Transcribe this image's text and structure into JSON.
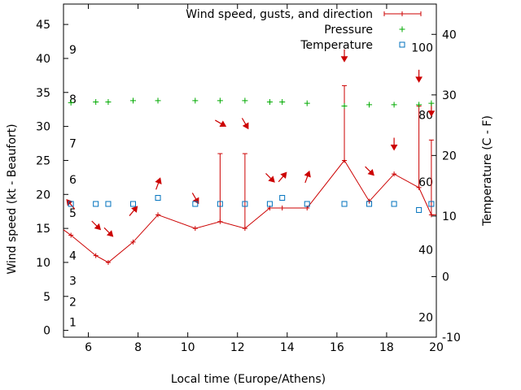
{
  "chart_data": {
    "type": "line",
    "xlabel": "Local time (Europe/Athens)",
    "ylabel": "Wind speed (kt - Beaufort)",
    "y2label": "Temperature (C - F)",
    "xlim": [
      5,
      20
    ],
    "ylim": [
      -1,
      48
    ],
    "y2lim": [
      -10,
      45
    ],
    "x_ticks": [
      6,
      8,
      10,
      12,
      14,
      16,
      18,
      20
    ],
    "y_ticks": [
      0,
      5,
      10,
      15,
      20,
      25,
      30,
      35,
      40,
      45
    ],
    "y2_ticks": [
      -10,
      0,
      10,
      20,
      30,
      40
    ],
    "beaufort_labels": [
      {
        "label": "1",
        "y": 1.2
      },
      {
        "label": "2",
        "y": 4.2
      },
      {
        "label": "3",
        "y": 7.3
      },
      {
        "label": "4",
        "y": 11.0
      },
      {
        "label": "5",
        "y": 17.3
      },
      {
        "label": "6",
        "y": 22.2
      },
      {
        "label": "7",
        "y": 27.5
      },
      {
        "label": "8",
        "y": 34.0
      },
      {
        "label": "9",
        "y": 41.3
      }
    ],
    "fahrenheit_labels": [
      {
        "label": "20",
        "c": -6.7
      },
      {
        "label": "40",
        "c": 4.4
      },
      {
        "label": "60",
        "c": 15.6
      },
      {
        "label": "80",
        "c": 26.7
      },
      {
        "label": "100",
        "c": 37.8
      }
    ],
    "legend": {
      "position": "top-right",
      "entries": [
        {
          "label": "Wind speed, gusts, and direction",
          "color": "#cc0000"
        },
        {
          "label": "Pressure",
          "color": "#00aa00"
        },
        {
          "label": "Temperature",
          "color": "#0072bd"
        }
      ]
    },
    "series": [
      {
        "name": "Wind speed, gusts, and direction",
        "color": "#cc0000",
        "x": [
          5.3,
          6.3,
          6.8,
          7.8,
          8.8,
          10.3,
          11.3,
          12.3,
          13.3,
          13.8,
          14.8,
          16.3,
          17.3,
          18.3,
          19.3,
          19.8
        ],
        "y": [
          14,
          11,
          10,
          13,
          17,
          15,
          16,
          15,
          18,
          18,
          18,
          25,
          19,
          23,
          21,
          17
        ],
        "gust": [
          null,
          null,
          null,
          null,
          null,
          null,
          26,
          26,
          null,
          null,
          null,
          36,
          null,
          null,
          33,
          28
        ],
        "direction_deg": [
          140,
          315,
          315,
          220,
          200,
          330,
          300,
          330,
          315,
          220,
          200,
          0,
          315,
          0,
          0,
          0
        ]
      },
      {
        "name": "Pressure",
        "color": "#00aa00",
        "x": [
          5.3,
          6.3,
          6.8,
          7.8,
          8.8,
          10.3,
          11.3,
          12.3,
          13.3,
          13.8,
          14.8,
          16.3,
          17.3,
          18.3,
          19.3,
          19.8
        ],
        "y": [
          33.5,
          33.6,
          33.6,
          33.8,
          33.8,
          33.8,
          33.8,
          33.8,
          33.6,
          33.6,
          33.4,
          33.0,
          33.2,
          33.2,
          33.2,
          33.4
        ]
      },
      {
        "name": "Temperature",
        "color": "#0072bd",
        "axis": "y2",
        "x": [
          5.3,
          6.3,
          6.8,
          7.8,
          8.8,
          10.3,
          11.3,
          12.3,
          13.3,
          13.8,
          14.8,
          16.3,
          17.3,
          18.3,
          19.3,
          19.8
        ],
        "y": [
          12,
          12,
          12,
          12,
          13,
          12,
          12,
          12,
          12,
          13,
          12,
          12,
          12,
          12,
          11,
          12
        ]
      }
    ]
  }
}
